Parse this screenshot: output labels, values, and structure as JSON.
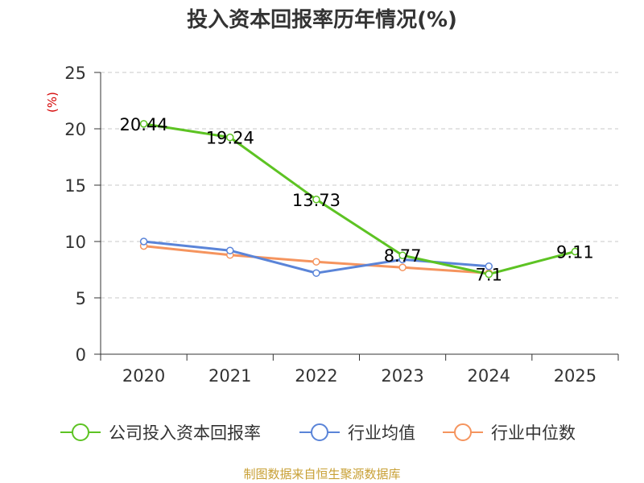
{
  "chart_data": {
    "type": "line",
    "title": "投入资本回报率历年情况(%)",
    "ylabel": "(%)",
    "xlabel": "",
    "categories": [
      "2020",
      "2021",
      "2022",
      "2023",
      "2024",
      "2025"
    ],
    "ylim": [
      0,
      25
    ],
    "yticks": [
      0,
      5,
      10,
      15,
      20,
      25
    ],
    "grid": true,
    "legend_position": "bottom",
    "series": [
      {
        "name": "公司投入资本回报率",
        "color": "#5dc323",
        "values": [
          20.44,
          19.24,
          13.73,
          8.77,
          7.1,
          9.11
        ],
        "labels": [
          "20.44",
          "19.24",
          "13.73",
          "8.77",
          "7.1",
          "9.11"
        ]
      },
      {
        "name": "行业均值",
        "color": "#5a84d8",
        "values": [
          10.0,
          9.2,
          7.2,
          8.4,
          7.8,
          null
        ]
      },
      {
        "name": "行业中位数",
        "color": "#f5945e",
        "values": [
          9.6,
          8.8,
          8.2,
          7.7,
          7.2,
          null
        ]
      }
    ]
  },
  "source": "制图数据来自恒生聚源数据库"
}
